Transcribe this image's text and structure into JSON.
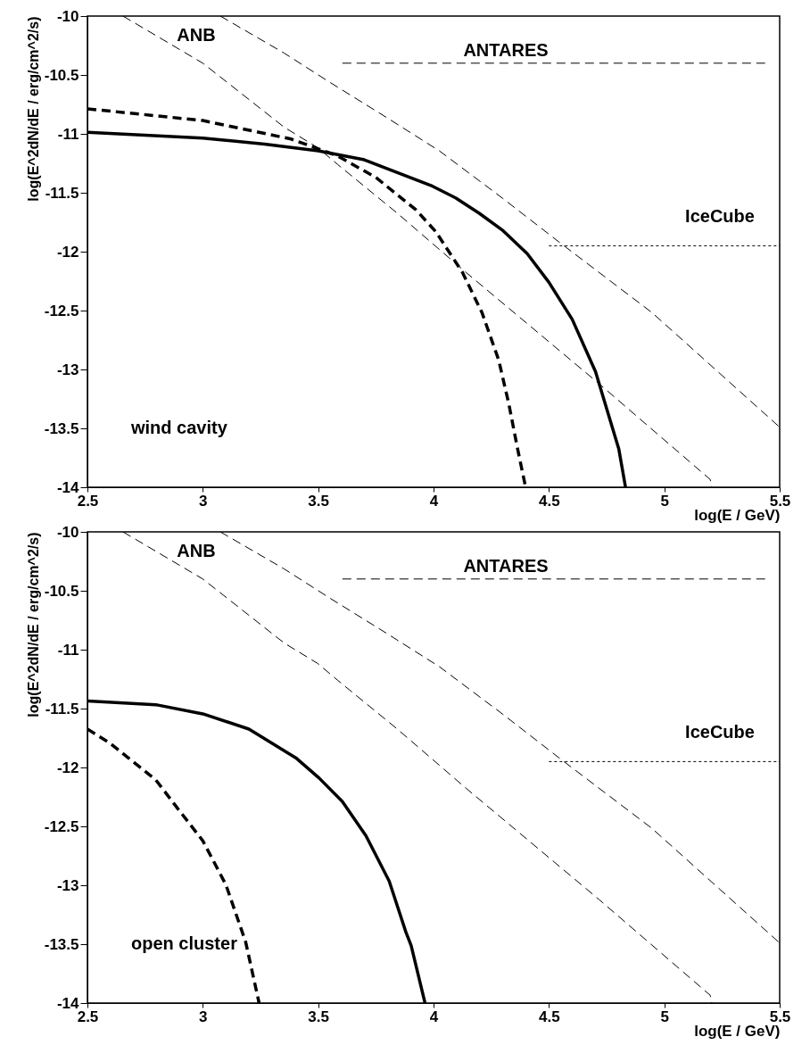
{
  "chart_data": [
    {
      "type": "line",
      "xlabel": "log(E / GeV)",
      "ylabel": "log(E^2dN/dE / erg/cm^2/s)",
      "xlim": [
        2.5,
        5.5
      ],
      "ylim": [
        -14,
        -10
      ],
      "xticks": [
        2.5,
        3,
        3.5,
        4,
        4.5,
        5,
        5.5
      ],
      "yticks": [
        -14,
        -13.5,
        -13,
        -12.5,
        -12,
        -11.5,
        -11,
        -10.5,
        -10
      ],
      "grid": false,
      "marker": "none",
      "annotations": [
        "wind cavity",
        "ANB",
        "ANTARES",
        "IceCube"
      ],
      "series": [
        {
          "color": "#000000",
          "line_style": "solid",
          "x": [
            2.5,
            3.0,
            3.268,
            3.5,
            3.7,
            3.996,
            4.097,
            4.198,
            4.298,
            4.406,
            4.5,
            4.601,
            4.702,
            4.803,
            4.832
          ],
          "values": [
            -10.987,
            -11.036,
            -11.087,
            -11.144,
            -11.22,
            -11.445,
            -11.545,
            -11.674,
            -11.817,
            -12.017,
            -12.26,
            -12.575,
            -13.019,
            -13.677,
            -14
          ]
        },
        {
          "color": "#000000",
          "line_style": "dashed",
          "x": [
            2.5,
            3.0,
            3.383,
            3.584,
            3.75,
            3.924,
            4.01,
            4.125,
            4.21,
            4.282,
            4.326,
            4.363,
            4.399
          ],
          "values": [
            -10.787,
            -10.887,
            -11.044,
            -11.187,
            -11.37,
            -11.645,
            -11.831,
            -12.175,
            -12.518,
            -12.918,
            -13.29,
            -13.662,
            -14
          ]
        },
        {
          "color": "#000000",
          "line_style": "dashed",
          "x": [
            2.654,
            3.0,
            3.353,
            3.497,
            3.584,
            3.843,
            4.14,
            4.716,
            5.199,
            5.206
          ],
          "values": [
            -10,
            -10.4,
            -10.944,
            -11.116,
            -11.259,
            -11.674,
            -12.175,
            -13.119,
            -13.934,
            -14
          ]
        },
        {
          "color": "#000000",
          "line_style": "dashed",
          "x": [
            3.076,
            3.353,
            3.547,
            3.794,
            4.025,
            4.298,
            4.543,
            4.947,
            5.5
          ],
          "values": [
            -10,
            -10.315,
            -10.558,
            -10.858,
            -11.144,
            -11.545,
            -11.917,
            -12.518,
            -13.49
          ]
        },
        {
          "color": "#000000",
          "line_style": "dashed",
          "x": [
            3.605,
            5.437
          ],
          "values": [
            -10.4,
            -10.4
          ]
        },
        {
          "color": "#000000",
          "line_style": "dotted",
          "x": [
            4.5,
            5.5
          ],
          "values": [
            -11.95,
            -11.95
          ]
        }
      ]
    },
    {
      "type": "line",
      "xlabel": "log(E / GeV)",
      "ylabel": "log(E^2dN/dE / erg/cm^2/s)",
      "xlim": [
        2.5,
        5.5
      ],
      "ylim": [
        -14,
        -10
      ],
      "xticks": [
        2.5,
        3,
        3.5,
        4,
        4.5,
        5,
        5.5
      ],
      "yticks": [
        -14,
        -13.5,
        -13,
        -12.5,
        -12,
        -11.5,
        -11,
        -10.5,
        -10
      ],
      "grid": false,
      "marker": "none",
      "annotations": [
        "open cluster",
        "ANB",
        "ANTARES",
        "IceCube"
      ],
      "series": [
        {
          "color": "#000000",
          "line_style": "solid",
          "x": [
            2.5,
            2.796,
            3.0,
            3.2,
            3.403,
            3.504,
            3.605,
            3.707,
            3.808,
            3.88,
            3.903,
            3.963
          ],
          "values": [
            -11.436,
            -11.467,
            -11.545,
            -11.674,
            -11.918,
            -12.09,
            -12.29,
            -12.579,
            -12.966,
            -13.397,
            -13.512,
            -14
          ]
        },
        {
          "color": "#000000",
          "line_style": "dashed",
          "x": [
            2.5,
            2.594,
            2.796,
            2.897,
            3.0,
            3.1,
            3.186,
            3.244
          ],
          "values": [
            -11.674,
            -11.789,
            -12.105,
            -12.363,
            -12.622,
            -12.995,
            -13.483,
            -14
          ]
        },
        {
          "color": "#000000",
          "line_style": "dashed",
          "x": [
            2.654,
            3.0,
            3.353,
            3.497,
            3.584,
            3.843,
            4.14,
            4.716,
            5.199,
            5.206
          ],
          "values": [
            -10,
            -10.4,
            -10.944,
            -11.116,
            -11.259,
            -11.674,
            -12.175,
            -13.119,
            -13.934,
            -14
          ]
        },
        {
          "color": "#000000",
          "line_style": "dashed",
          "x": [
            3.076,
            3.353,
            3.547,
            3.794,
            4.025,
            4.298,
            4.543,
            4.947,
            5.5
          ],
          "values": [
            -10,
            -10.315,
            -10.558,
            -10.858,
            -11.144,
            -11.545,
            -11.917,
            -12.518,
            -13.49
          ]
        },
        {
          "color": "#000000",
          "line_style": "dashed",
          "x": [
            3.605,
            5.437
          ],
          "values": [
            -10.4,
            -10.4
          ]
        },
        {
          "color": "#000000",
          "line_style": "dotted",
          "x": [
            4.5,
            5.5
          ],
          "values": [
            -11.95,
            -11.95
          ]
        }
      ]
    }
  ]
}
